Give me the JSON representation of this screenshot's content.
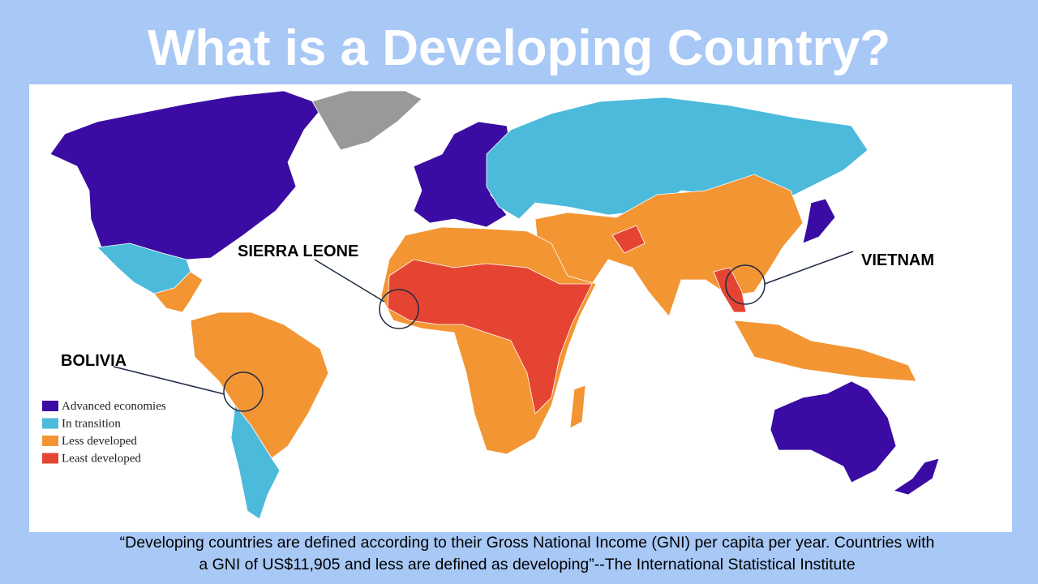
{
  "title": "What is a Developing Country?",
  "legend": [
    {
      "label": "Advanced economies",
      "color": "#3a0ca3"
    },
    {
      "label": "In transition",
      "color": "#4cbadb"
    },
    {
      "label": "Less developed",
      "color": "#f39533"
    },
    {
      "label": "Least developed",
      "color": "#e64432"
    }
  ],
  "no_data_color": "#999999",
  "callouts": [
    "SIERRA LEONE",
    "VIETNAM",
    "BOLIVIA"
  ],
  "quote": [
    "“Developing countries are defined according to their Gross National Income (GNI) per capita per year. Countries with",
    "a GNI of US$11,905 and less are defined as developing”--The International Statistical Institute"
  ]
}
